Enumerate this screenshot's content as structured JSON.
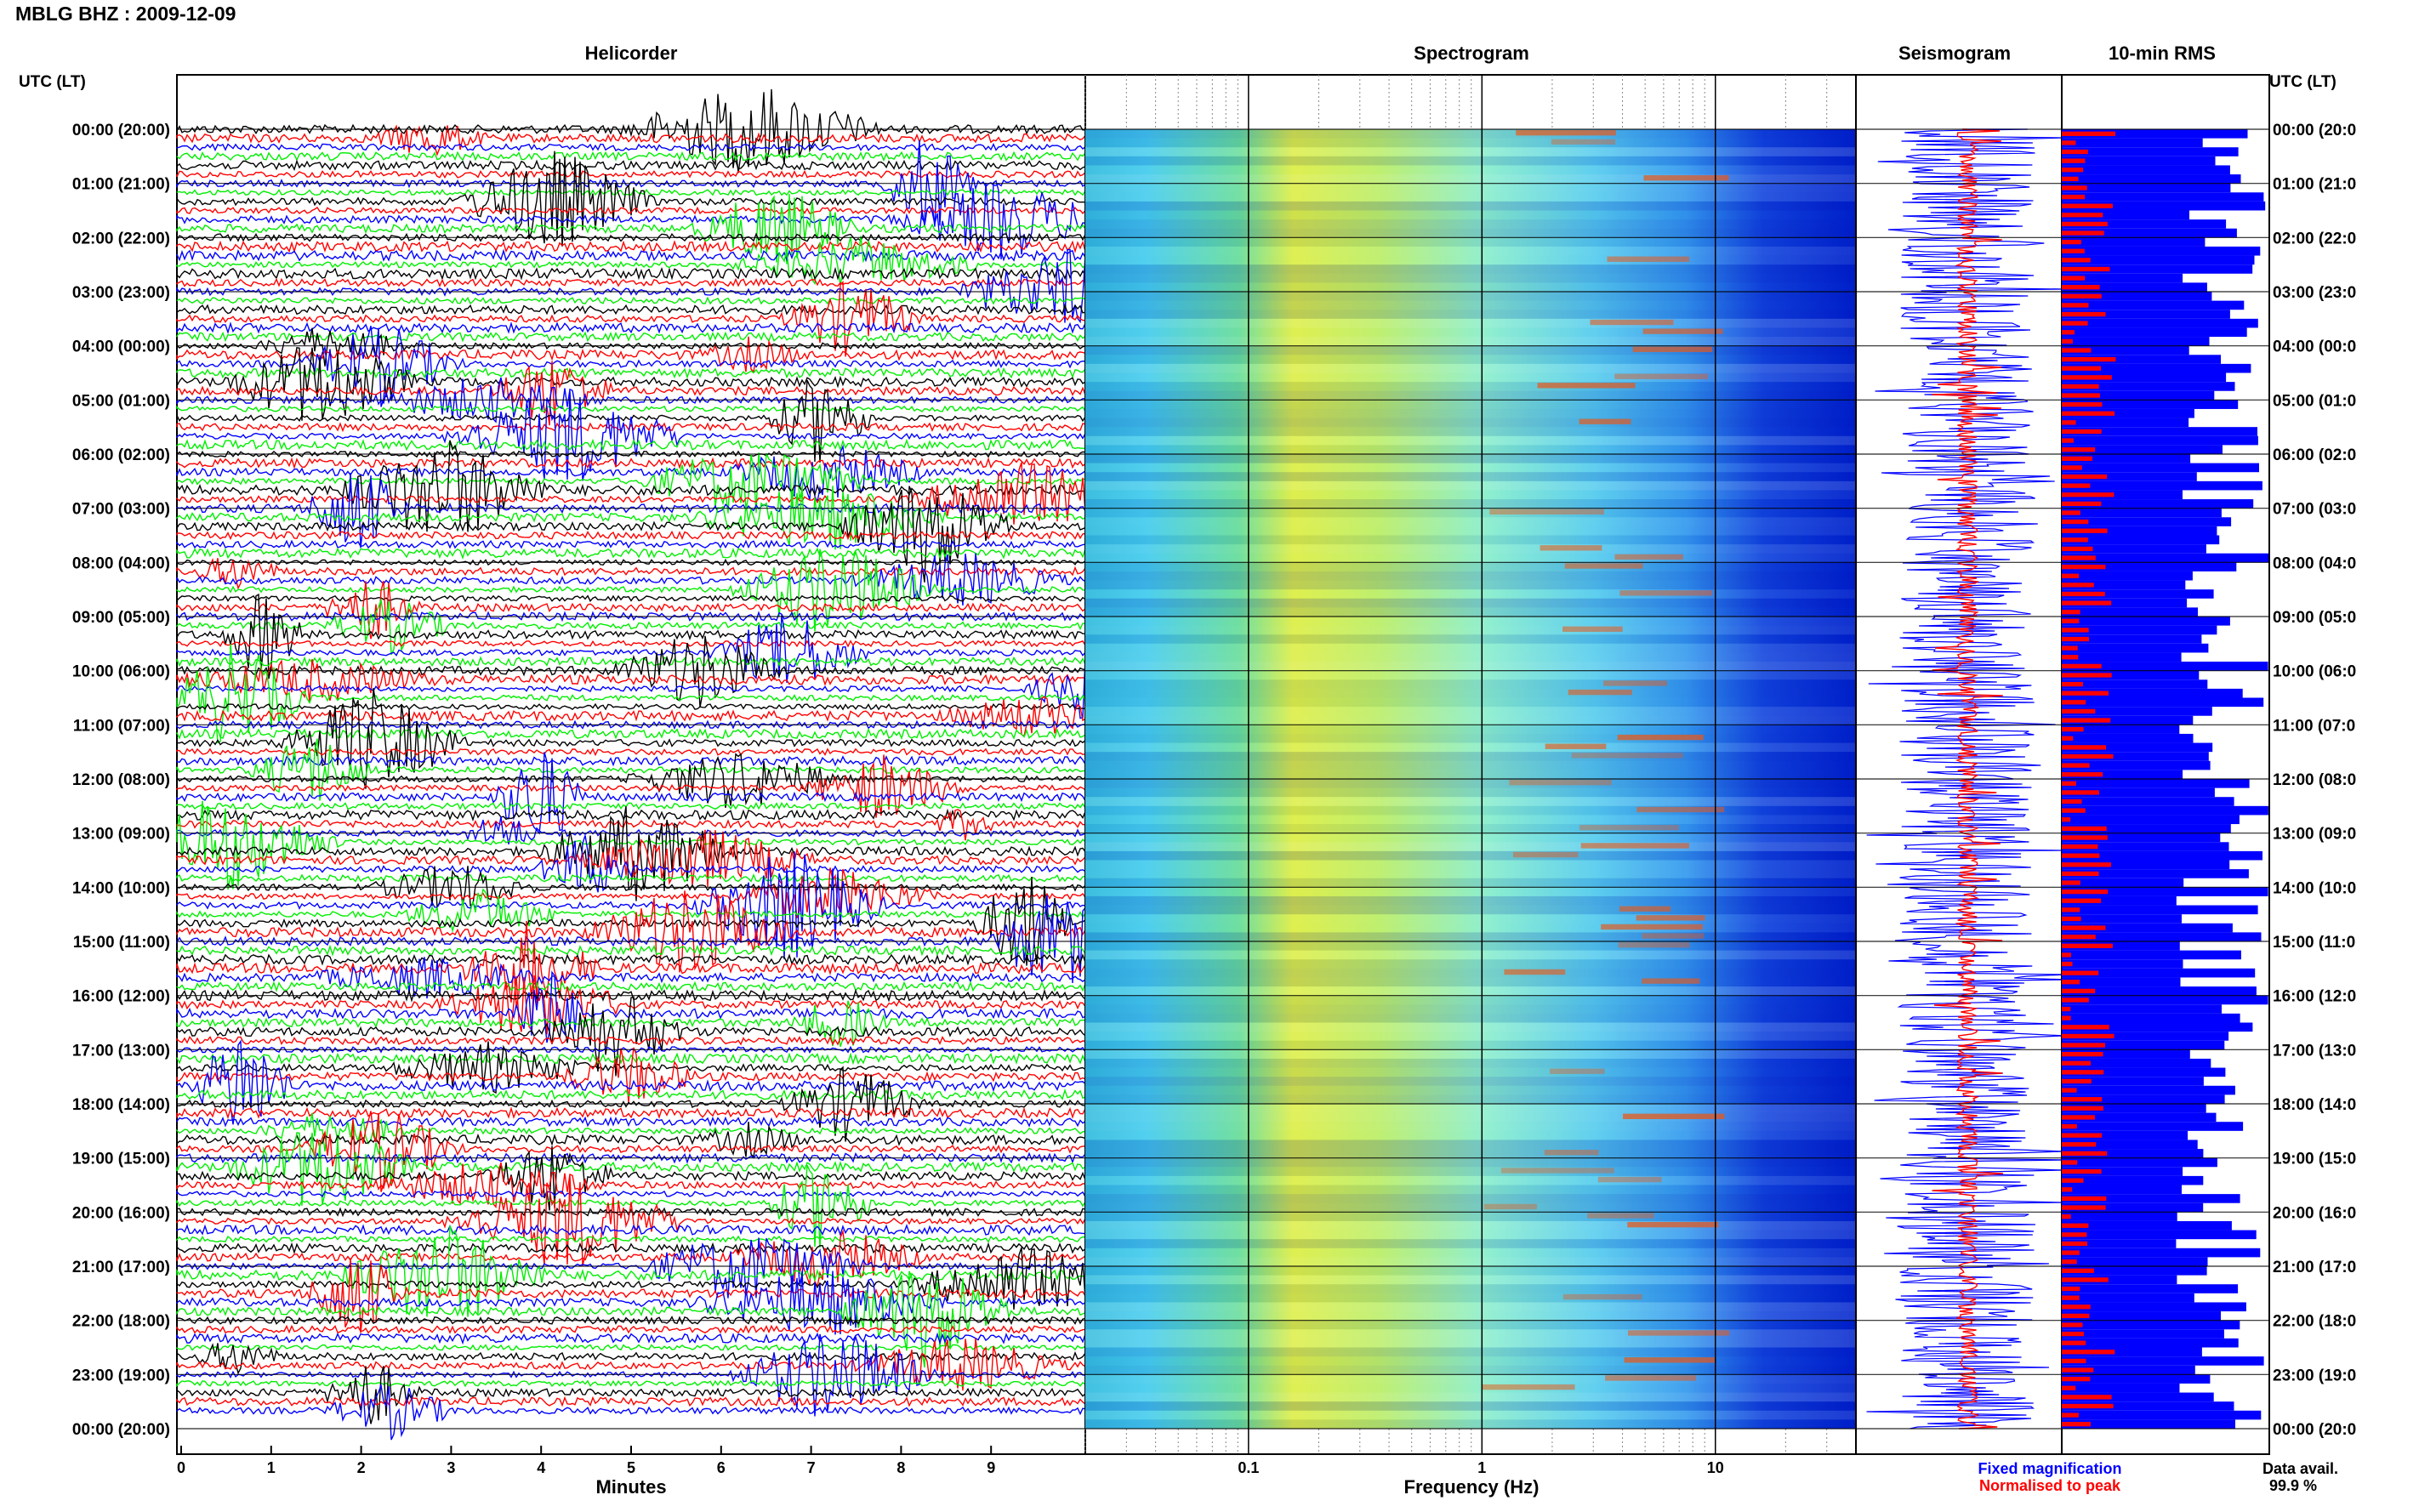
{
  "header": {
    "station_title": "MBLG BHZ : 2009-12-09",
    "utc_label": "UTC (LT)",
    "utc_label_right": "UTC (LT)"
  },
  "panels": {
    "helicorder": "Helicorder",
    "spectrogram": "Spectrogram",
    "seismogram": "Seismogram",
    "rms": "10-min RMS"
  },
  "time_labels": [
    "00:00 (20:00)",
    "01:00 (21:00)",
    "02:00 (22:00)",
    "03:00 (23:00)",
    "04:00 (00:00)",
    "05:00 (01:00)",
    "06:00 (02:00)",
    "07:00 (03:00)",
    "08:00 (04:00)",
    "09:00 (05:00)",
    "10:00 (06:00)",
    "11:00 (07:00)",
    "12:00 (08:00)",
    "13:00 (09:00)",
    "14:00 (10:00)",
    "15:00 (11:00)",
    "16:00 (12:00)",
    "17:00 (13:00)",
    "18:00 (14:00)",
    "19:00 (15:00)",
    "20:00 (16:00)",
    "21:00 (17:00)",
    "22:00 (18:00)",
    "23:00 (19:00)",
    "00:00 (20:00)"
  ],
  "time_labels_right": [
    "00:00 (20:0",
    "01:00 (21:0",
    "02:00 (22:0",
    "03:00 (23:0",
    "04:00 (00:0",
    "05:00 (01:0",
    "06:00 (02:0",
    "07:00 (03:0",
    "08:00 (04:0",
    "09:00 (05:0",
    "10:00 (06:0",
    "11:00 (07:0",
    "12:00 (08:0",
    "13:00 (09:0",
    "14:00 (10:0",
    "15:00 (11:0",
    "16:00 (12:0",
    "17:00 (13:0",
    "18:00 (14:0",
    "19:00 (15:0",
    "20:00 (16:0",
    "21:00 (17:0",
    "22:00 (18:0",
    "23:00 (19:0",
    "00:00 (20:0"
  ],
  "footer": {
    "minutes_label": "Minutes",
    "frequency_label": "Frequency (Hz)",
    "fixed_magnification": "Fixed magnification",
    "normalised_to_peak": "Normalised to peak",
    "data_avail_label": "Data avail.",
    "data_avail_value": "99.9 %"
  },
  "colors": {
    "trace_cycle": [
      "#000000",
      "#ff0000",
      "#0000ff",
      "#00ee00"
    ],
    "fixed_magnification": "#0000ff",
    "normalised_to_peak": "#ff0000",
    "rms_fill": "#0000ff"
  },
  "chart_data": [
    {
      "type": "line",
      "name": "helicorder",
      "x_ticks": [
        "0",
        "1",
        "2",
        "3",
        "4",
        "5",
        "6",
        "7",
        "8",
        "9"
      ],
      "xlim": [
        0,
        10
      ],
      "rows_per_hour": 6,
      "hours": 24
    },
    {
      "type": "heatmap",
      "name": "spectrogram",
      "x_scale": "log",
      "x_ticks": [
        "0.1",
        "1",
        "10"
      ],
      "xlim": [
        0.02,
        40
      ],
      "rows_per_hour": 6,
      "hours": 24
    },
    {
      "type": "line",
      "name": "seismogram",
      "series": [
        {
          "name": "Fixed magnification",
          "color": "#0000ff"
        },
        {
          "name": "Normalised to peak",
          "color": "#ff0000"
        }
      ]
    },
    {
      "type": "bar",
      "name": "10-min RMS",
      "bars_per_hour": 6,
      "hours": 24
    }
  ]
}
